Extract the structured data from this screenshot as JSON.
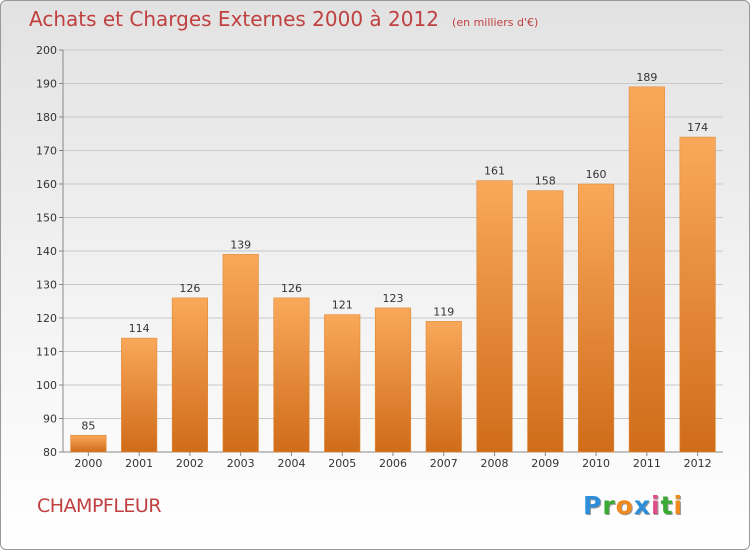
{
  "chart_data": {
    "type": "bar",
    "title": "Achats et Charges Externes 2000 à 2012",
    "unit_label": "(en milliers d'€)",
    "categories": [
      "2000",
      "2001",
      "2002",
      "2003",
      "2004",
      "2005",
      "2006",
      "2007",
      "2008",
      "2009",
      "2010",
      "2011",
      "2012"
    ],
    "values": [
      85,
      114,
      126,
      139,
      126,
      121,
      123,
      119,
      161,
      158,
      160,
      189,
      174
    ],
    "ylim": [
      80,
      200
    ],
    "yticks": [
      80,
      90,
      100,
      110,
      120,
      130,
      140,
      150,
      160,
      170,
      180,
      190,
      200
    ],
    "xlabel": "",
    "ylabel": "",
    "grid": true,
    "bar_color_top": "#f9a85a",
    "bar_color_bottom": "#d06c1a"
  },
  "location": "CHAMPFLEUR",
  "logo": {
    "letters": [
      "P",
      "r",
      "o",
      "x",
      "i",
      "t",
      "i"
    ],
    "colors": [
      "#2e8fd8",
      "#3aaa35",
      "#f08a1c",
      "#2e8fd8",
      "#e04e8a",
      "#3aaa35",
      "#f08a1c"
    ]
  }
}
